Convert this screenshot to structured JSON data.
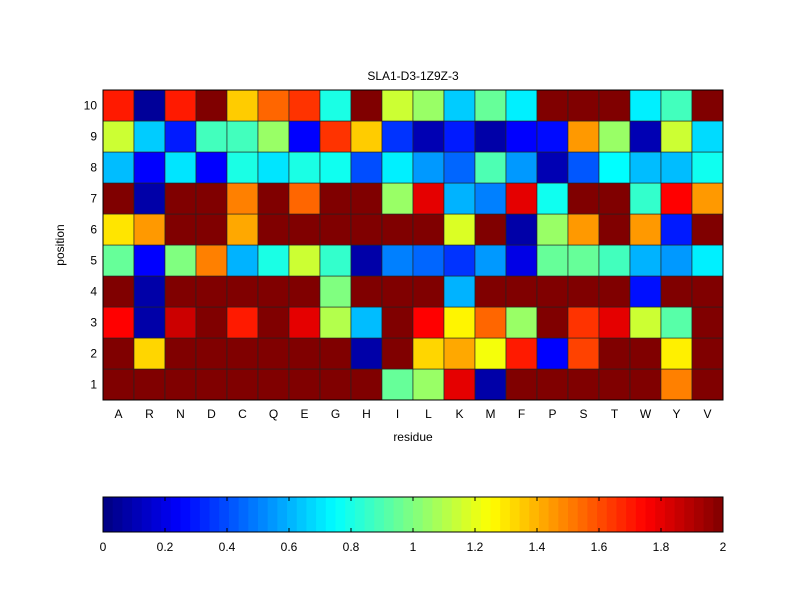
{
  "chart_data": {
    "type": "heatmap",
    "title": "SLA1-D3-1Z9Z-3",
    "xlabel": "residue",
    "ylabel": "position",
    "x_categories": [
      "A",
      "R",
      "N",
      "D",
      "C",
      "Q",
      "E",
      "G",
      "H",
      "I",
      "L",
      "K",
      "M",
      "F",
      "P",
      "S",
      "T",
      "W",
      "Y",
      "V"
    ],
    "y_categories": [
      "1",
      "2",
      "3",
      "4",
      "5",
      "6",
      "7",
      "8",
      "9",
      "10"
    ],
    "colormap": "jet",
    "clim": [
      0,
      2
    ],
    "colorbar_ticks": [
      "0",
      "0.2",
      "0.4",
      "0.6",
      "0.8",
      "1",
      "1.2",
      "1.4",
      "1.6",
      "1.8",
      "2"
    ],
    "values_by_position": {
      "10": [
        1.7,
        0.05,
        1.7,
        2,
        1.35,
        1.55,
        1.65,
        0.8,
        2,
        1.15,
        1.05,
        0.65,
        0.95,
        0.72,
        2,
        2,
        2,
        0.72,
        0.88,
        2
      ],
      "9": [
        1.15,
        0.65,
        0.3,
        0.88,
        0.88,
        1.05,
        0.25,
        1.65,
        1.35,
        0.35,
        0.1,
        0.3,
        0.08,
        0.25,
        0.27,
        1.45,
        1.05,
        0.1,
        1.15,
        0.68
      ],
      "8": [
        0.62,
        0.25,
        0.7,
        0.25,
        0.8,
        0.7,
        0.8,
        0.78,
        0.4,
        0.72,
        0.55,
        0.45,
        0.9,
        0.55,
        0.1,
        0.42,
        0.75,
        0.62,
        0.62,
        0.78
      ],
      "7": [
        2,
        0.08,
        2,
        2,
        1.5,
        2,
        1.55,
        2,
        2,
        1.05,
        1.8,
        0.6,
        0.5,
        1.8,
        0.78,
        2,
        2,
        0.85,
        1.75,
        1.45
      ],
      "6": [
        1.3,
        1.45,
        2,
        2,
        1.42,
        2,
        2,
        2,
        2,
        2,
        2,
        1.18,
        2,
        0.08,
        1.05,
        1.45,
        2,
        1.45,
        0.3,
        2
      ],
      "5": [
        0.95,
        0.25,
        1.0,
        1.5,
        0.6,
        0.8,
        1.15,
        0.85,
        0.08,
        0.5,
        0.45,
        0.35,
        0.55,
        0.2,
        0.95,
        0.95,
        0.88,
        0.6,
        0.55,
        0.72
      ],
      "4": [
        2,
        0.08,
        2,
        2,
        2,
        2,
        2,
        1.0,
        2,
        2,
        2,
        0.6,
        2,
        2,
        2,
        2,
        2,
        0.28,
        2,
        2
      ],
      "3": [
        1.75,
        0.08,
        1.85,
        2,
        1.7,
        2,
        1.8,
        1.1,
        0.62,
        2,
        1.75,
        1.27,
        1.55,
        1.05,
        2,
        1.65,
        1.8,
        1.15,
        0.92,
        2
      ],
      "2": [
        2,
        1.33,
        2,
        2,
        2,
        2,
        2,
        2,
        0.08,
        2,
        1.33,
        1.42,
        1.23,
        1.7,
        0.25,
        1.62,
        2,
        2,
        1.28,
        2
      ],
      "1": [
        2,
        2,
        2,
        2,
        2,
        2,
        2,
        2,
        2,
        0.95,
        1.05,
        1.8,
        0.08,
        2,
        2,
        2,
        2,
        2,
        1.5,
        2
      ]
    }
  }
}
